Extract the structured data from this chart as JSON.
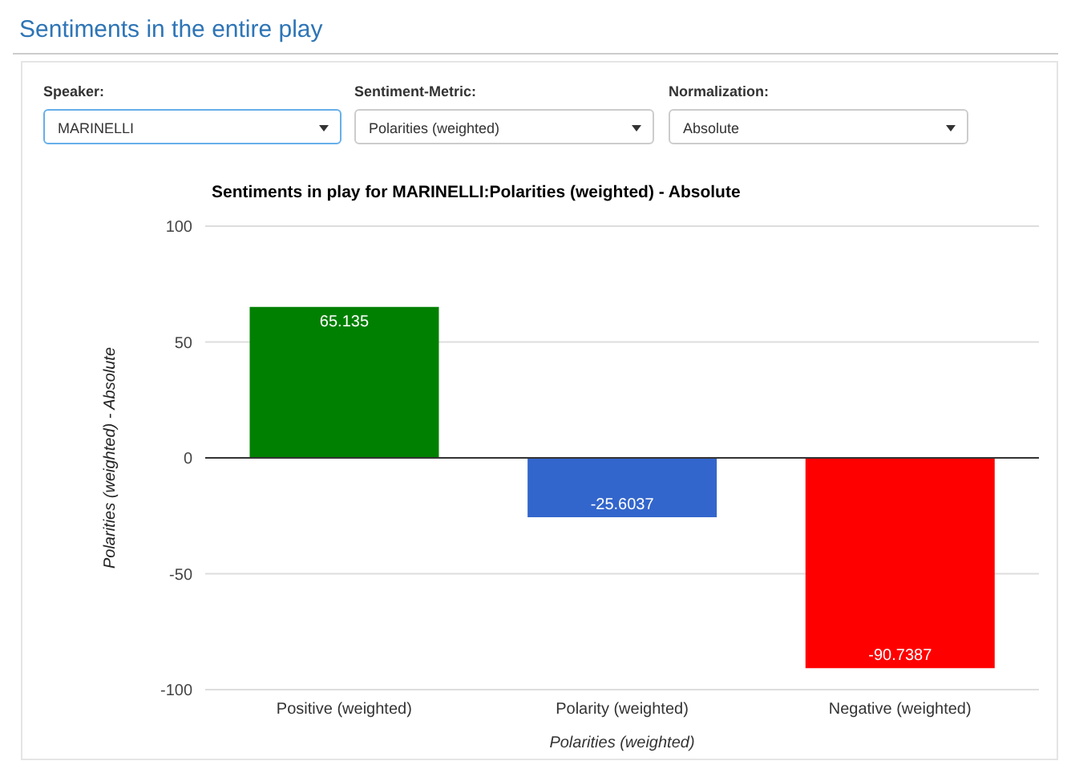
{
  "chart_data": {
    "type": "bar",
    "title": "Sentiments in the entire play",
    "subtitle": "Sentiments in play for MARINELLI:Polarities (weighted) - Absolute",
    "annotations": [
      "Speaker:",
      "MARINELLI",
      "Sentiment-Metric:",
      "Polarities (weighted)",
      "Normalization:",
      "Absolute"
    ],
    "categories": [
      "Positive (weighted)",
      "Polarity (weighted)",
      "Negative (weighted)"
    ],
    "values": [
      65.135,
      -25.6037,
      -90.7387
    ],
    "colors": [
      "#008000",
      "#3366cc",
      "#ff0000"
    ],
    "xlabel": "Polarities (weighted)",
    "ylabel": "Polarities (weighted) - Absolute",
    "ylim": [
      -100,
      100
    ],
    "yticks": [
      -100,
      -50,
      0,
      50,
      100
    ],
    "grid": "y",
    "data_labels": true,
    "legend": false
  }
}
